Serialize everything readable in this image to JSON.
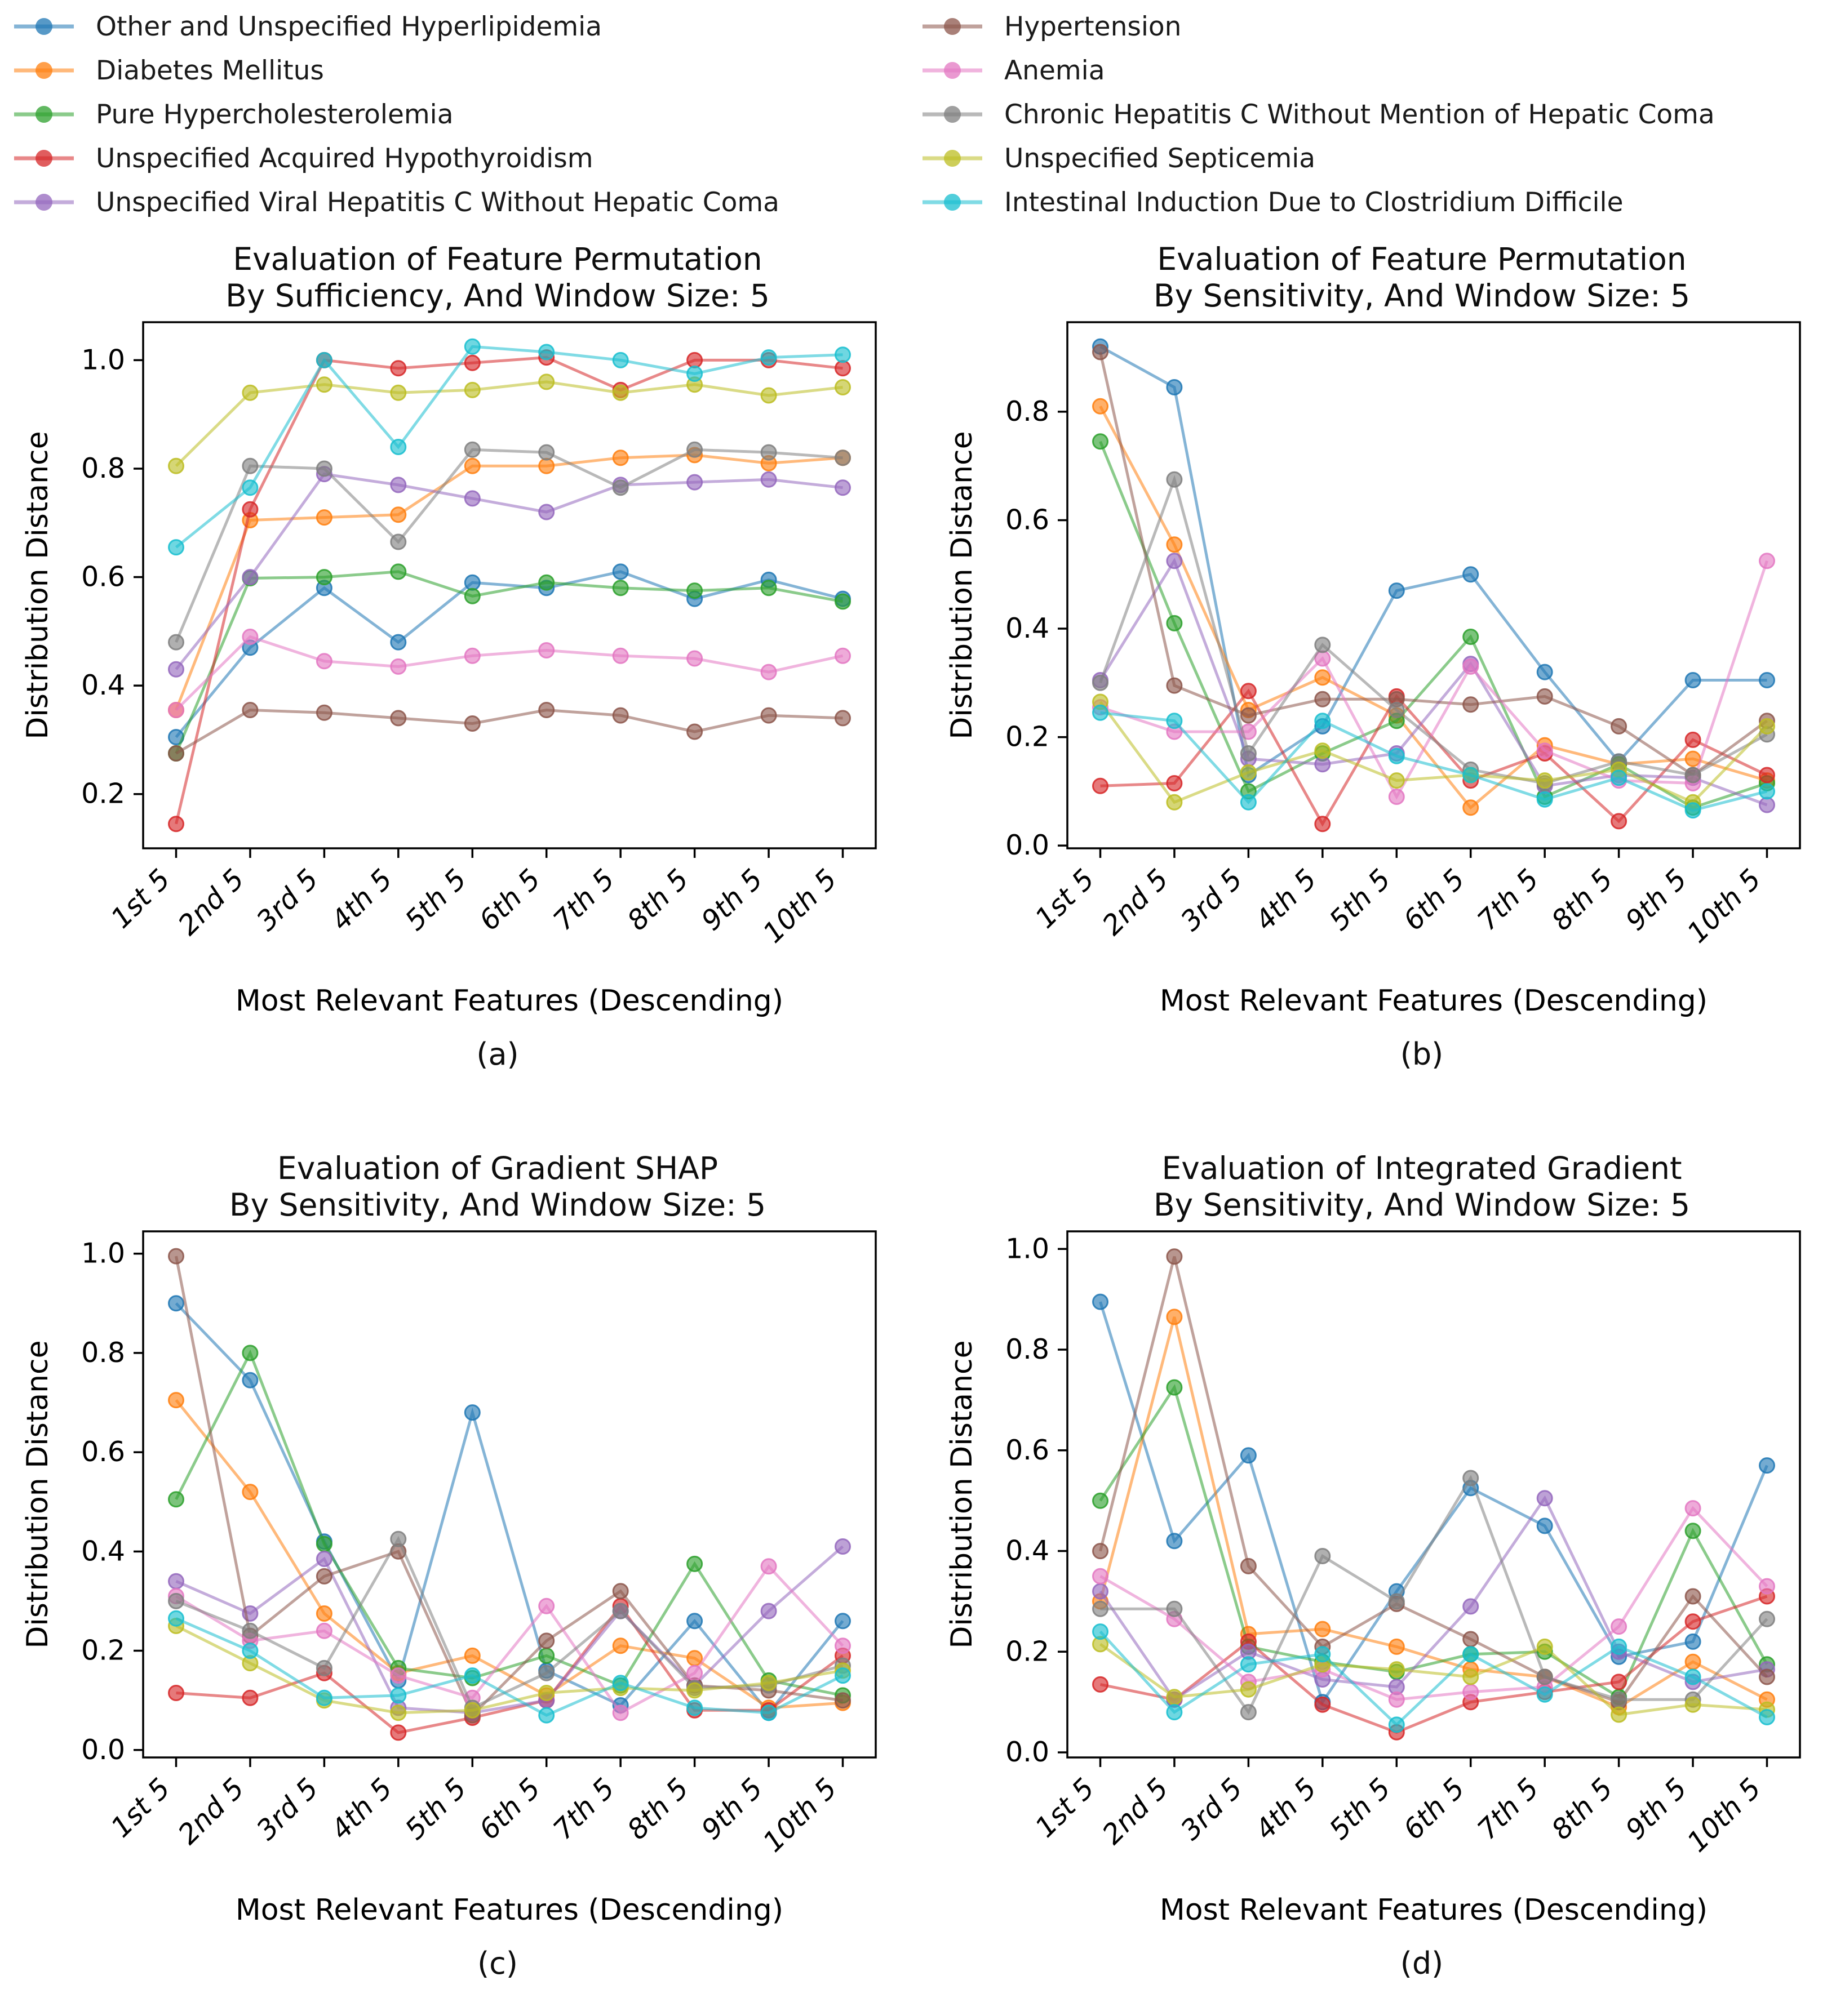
{
  "palette": {
    "blue": "#1f77b4",
    "orange": "#ff7f0e",
    "green": "#2ca02c",
    "red": "#d62728",
    "purple": "#9467bd",
    "brown": "#8c564b",
    "pink": "#e377c2",
    "gray": "#7f7f7f",
    "olive": "#bcbd22",
    "cyan": "#17becf"
  },
  "legend": {
    "columns": [
      {
        "items": [
          {
            "label": "Other and Unspecified Hyperlipidemia",
            "color": "blue"
          },
          {
            "label": "Diabetes Mellitus",
            "color": "orange"
          },
          {
            "label": "Pure Hypercholesterolemia",
            "color": "green"
          },
          {
            "label": "Unspecified Acquired Hypothyroidism",
            "color": "red"
          },
          {
            "label": "Unspecified Viral Hepatitis C Without Hepatic Coma",
            "color": "purple"
          }
        ]
      },
      {
        "items": [
          {
            "label": "Hypertension",
            "color": "brown"
          },
          {
            "label": "Anemia",
            "color": "pink"
          },
          {
            "label": "Chronic Hepatitis C Without Mention of Hepatic Coma",
            "color": "gray"
          },
          {
            "label": "Unspecified Septicemia",
            "color": "olive"
          },
          {
            "label": "Intestinal Induction Due to Clostridium Difficile",
            "color": "cyan"
          }
        ]
      }
    ]
  },
  "chart_data": [
    {
      "id": "a",
      "type": "line",
      "caption": "(a)",
      "title_line1": "Evaluation of Feature Permutation",
      "title_line2": "By Sufficiency, And Window Size: 5",
      "xlabel": "Most Relevant Features (Descending)",
      "ylabel": "Distribution Distance",
      "categories": [
        "1st 5",
        "2nd 5",
        "3rd 5",
        "4th 5",
        "5th 5",
        "6th 5",
        "7th 5",
        "8th 5",
        "9th 5",
        "10th 5"
      ],
      "yticks": [
        0.2,
        0.4,
        0.6,
        0.8,
        1.0
      ],
      "ylim": [
        0.1,
        1.07
      ],
      "grid": false,
      "series": [
        {
          "name": "Other and Unspecified Hyperlipidemia",
          "color": "blue",
          "values": [
            0.305,
            0.47,
            0.58,
            0.48,
            0.59,
            0.58,
            0.61,
            0.56,
            0.595,
            0.56
          ]
        },
        {
          "name": "Diabetes Mellitus",
          "color": "orange",
          "values": [
            0.355,
            0.705,
            0.71,
            0.715,
            0.805,
            0.805,
            0.82,
            0.825,
            0.81,
            0.82
          ]
        },
        {
          "name": "Pure Hypercholesterolemia",
          "color": "green",
          "values": [
            0.275,
            0.598,
            0.6,
            0.61,
            0.565,
            0.59,
            0.58,
            0.575,
            0.58,
            0.555
          ]
        },
        {
          "name": "Unspecified Acquired Hypothyroidism",
          "color": "red",
          "values": [
            0.145,
            0.725,
            1.0,
            0.985,
            0.995,
            1.005,
            0.945,
            1.0,
            1.0,
            0.985
          ]
        },
        {
          "name": "Unspecified Viral Hepatitis C Without Hepatic Coma",
          "color": "purple",
          "values": [
            0.43,
            0.6,
            0.79,
            0.77,
            0.745,
            0.72,
            0.77,
            0.775,
            0.78,
            0.765
          ]
        },
        {
          "name": "Hypertension",
          "color": "brown",
          "values": [
            0.275,
            0.355,
            0.35,
            0.34,
            0.33,
            0.355,
            0.345,
            0.315,
            0.345,
            0.34
          ]
        },
        {
          "name": "Anemia",
          "color": "pink",
          "values": [
            0.355,
            0.49,
            0.445,
            0.435,
            0.455,
            0.465,
            0.455,
            0.45,
            0.425,
            0.455
          ]
        },
        {
          "name": "Chronic Hepatitis C Without Mention of Hepatic Coma",
          "color": "gray",
          "values": [
            0.48,
            0.805,
            0.8,
            0.665,
            0.835,
            0.83,
            0.765,
            0.835,
            0.83,
            0.82
          ]
        },
        {
          "name": "Unspecified Septicemia",
          "color": "olive",
          "values": [
            0.805,
            0.94,
            0.955,
            0.94,
            0.945,
            0.96,
            0.94,
            0.955,
            0.935,
            0.95
          ]
        },
        {
          "name": "Intestinal Induction Due to Clostridium Difficile",
          "color": "cyan",
          "values": [
            0.655,
            0.765,
            1.0,
            0.84,
            1.025,
            1.015,
            1.0,
            0.975,
            1.005,
            1.01
          ]
        }
      ]
    },
    {
      "id": "b",
      "type": "line",
      "caption": "(b)",
      "title_line1": "Evaluation of Feature Permutation",
      "title_line2": "By Sensitivity, And Window Size: 5",
      "xlabel": "Most Relevant Features (Descending)",
      "ylabel": "Distribution Distance",
      "categories": [
        "1st 5",
        "2nd 5",
        "3rd 5",
        "4th 5",
        "5th 5",
        "6th 5",
        "7th 5",
        "8th 5",
        "9th 5",
        "10th 5"
      ],
      "yticks": [
        0.0,
        0.2,
        0.4,
        0.6,
        0.8
      ],
      "ylim": [
        -0.005,
        0.965
      ],
      "grid": false,
      "series": [
        {
          "name": "Other and Unspecified Hyperlipidemia",
          "color": "blue",
          "values": [
            0.92,
            0.845,
            0.13,
            0.22,
            0.47,
            0.5,
            0.32,
            0.155,
            0.305,
            0.305
          ]
        },
        {
          "name": "Diabetes Mellitus",
          "color": "orange",
          "values": [
            0.81,
            0.555,
            0.25,
            0.31,
            0.24,
            0.07,
            0.185,
            0.15,
            0.16,
            0.12
          ]
        },
        {
          "name": "Pure Hypercholesterolemia",
          "color": "green",
          "values": [
            0.745,
            0.41,
            0.1,
            0.17,
            0.23,
            0.385,
            0.09,
            0.15,
            0.07,
            0.115
          ]
        },
        {
          "name": "Unspecified Acquired Hypothyroidism",
          "color": "red",
          "values": [
            0.11,
            0.115,
            0.285,
            0.04,
            0.275,
            0.12,
            0.17,
            0.045,
            0.195,
            0.13
          ]
        },
        {
          "name": "Unspecified Viral Hepatitis C Without Hepatic Coma",
          "color": "purple",
          "values": [
            0.305,
            0.525,
            0.16,
            0.15,
            0.17,
            0.335,
            0.11,
            0.13,
            0.125,
            0.075
          ]
        },
        {
          "name": "Hypertension",
          "color": "brown",
          "values": [
            0.91,
            0.295,
            0.24,
            0.27,
            0.27,
            0.26,
            0.275,
            0.22,
            0.13,
            0.23
          ]
        },
        {
          "name": "Anemia",
          "color": "pink",
          "values": [
            0.255,
            0.21,
            0.21,
            0.345,
            0.09,
            0.33,
            0.175,
            0.12,
            0.115,
            0.525
          ]
        },
        {
          "name": "Chronic Hepatitis C Without Mention of Hepatic Coma",
          "color": "gray",
          "values": [
            0.3,
            0.675,
            0.17,
            0.37,
            0.25,
            0.14,
            0.115,
            0.155,
            0.13,
            0.205
          ]
        },
        {
          "name": "Unspecified Septicemia",
          "color": "olive",
          "values": [
            0.265,
            0.08,
            0.135,
            0.175,
            0.12,
            0.13,
            0.12,
            0.14,
            0.08,
            0.22
          ]
        },
        {
          "name": "Intestinal Induction Due to Clostridium Difficile",
          "color": "cyan",
          "values": [
            0.245,
            0.23,
            0.08,
            0.23,
            0.165,
            0.13,
            0.085,
            0.125,
            0.065,
            0.1
          ]
        }
      ]
    },
    {
      "id": "c",
      "type": "line",
      "caption": "(c)",
      "title_line1": "Evaluation of Gradient SHAP",
      "title_line2": "By Sensitivity, And Window Size: 5",
      "xlabel": "Most Relevant Features (Descending)",
      "ylabel": "Distribution Distance",
      "categories": [
        "1st 5",
        "2nd 5",
        "3rd 5",
        "4th 5",
        "5th 5",
        "6th 5",
        "7th 5",
        "8th 5",
        "9th 5",
        "10th 5"
      ],
      "yticks": [
        0.0,
        0.2,
        0.4,
        0.6,
        0.8,
        1.0
      ],
      "ylim": [
        -0.015,
        1.045
      ],
      "grid": false,
      "series": [
        {
          "name": "Other and Unspecified Hyperlipidemia",
          "color": "blue",
          "values": [
            0.9,
            0.745,
            0.42,
            0.14,
            0.68,
            0.16,
            0.09,
            0.26,
            0.075,
            0.26
          ]
        },
        {
          "name": "Diabetes Mellitus",
          "color": "orange",
          "values": [
            0.705,
            0.52,
            0.275,
            0.155,
            0.19,
            0.11,
            0.21,
            0.185,
            0.085,
            0.095
          ]
        },
        {
          "name": "Pure Hypercholesterolemia",
          "color": "green",
          "values": [
            0.505,
            0.8,
            0.415,
            0.165,
            0.145,
            0.19,
            0.13,
            0.375,
            0.14,
            0.11
          ]
        },
        {
          "name": "Unspecified Acquired Hypothyroidism",
          "color": "red",
          "values": [
            0.115,
            0.105,
            0.155,
            0.035,
            0.065,
            0.1,
            0.29,
            0.08,
            0.08,
            0.19
          ]
        },
        {
          "name": "Unspecified Viral Hepatitis C Without Hepatic Coma",
          "color": "purple",
          "values": [
            0.34,
            0.275,
            0.385,
            0.085,
            0.075,
            0.1,
            0.28,
            0.13,
            0.28,
            0.41
          ]
        },
        {
          "name": "Hypertension",
          "color": "brown",
          "values": [
            0.995,
            0.23,
            0.35,
            0.4,
            0.07,
            0.22,
            0.32,
            0.13,
            0.12,
            0.1
          ]
        },
        {
          "name": "Anemia",
          "color": "pink",
          "values": [
            0.31,
            0.22,
            0.24,
            0.15,
            0.105,
            0.29,
            0.075,
            0.155,
            0.37,
            0.21
          ]
        },
        {
          "name": "Chronic Hepatitis C Without Mention of Hepatic Coma",
          "color": "gray",
          "values": [
            0.3,
            0.24,
            0.165,
            0.425,
            0.085,
            0.155,
            0.28,
            0.125,
            0.13,
            0.17
          ]
        },
        {
          "name": "Unspecified Septicemia",
          "color": "olive",
          "values": [
            0.25,
            0.175,
            0.1,
            0.075,
            0.08,
            0.115,
            0.125,
            0.12,
            0.135,
            0.16
          ]
        },
        {
          "name": "Intestinal Induction Due to Clostridium Difficile",
          "color": "cyan",
          "values": [
            0.265,
            0.2,
            0.105,
            0.11,
            0.15,
            0.07,
            0.135,
            0.085,
            0.075,
            0.15
          ]
        }
      ]
    },
    {
      "id": "d",
      "type": "line",
      "caption": "(d)",
      "title_line1": "Evaluation of Integrated Gradient",
      "title_line2": "By Sensitivity, And Window Size: 5",
      "xlabel": "Most Relevant Features (Descending)",
      "ylabel": "Distribution Distance",
      "categories": [
        "1st 5",
        "2nd 5",
        "3rd 5",
        "4th 5",
        "5th 5",
        "6th 5",
        "7th 5",
        "8th 5",
        "9th 5",
        "10th 5"
      ],
      "yticks": [
        0.0,
        0.2,
        0.4,
        0.6,
        0.8,
        1.0
      ],
      "ylim": [
        -0.01,
        1.035
      ],
      "grid": false,
      "series": [
        {
          "name": "Other and Unspecified Hyperlipidemia",
          "color": "blue",
          "values": [
            0.895,
            0.42,
            0.59,
            0.1,
            0.32,
            0.525,
            0.45,
            0.19,
            0.22,
            0.57
          ]
        },
        {
          "name": "Diabetes Mellitus",
          "color": "orange",
          "values": [
            0.3,
            0.865,
            0.235,
            0.245,
            0.21,
            0.165,
            0.15,
            0.09,
            0.18,
            0.105
          ]
        },
        {
          "name": "Pure Hypercholesterolemia",
          "color": "green",
          "values": [
            0.5,
            0.725,
            0.21,
            0.18,
            0.16,
            0.195,
            0.2,
            0.11,
            0.44,
            0.175
          ]
        },
        {
          "name": "Unspecified Acquired Hypothyroidism",
          "color": "red",
          "values": [
            0.135,
            0.105,
            0.22,
            0.095,
            0.04,
            0.1,
            0.12,
            0.14,
            0.26,
            0.31
          ]
        },
        {
          "name": "Unspecified Viral Hepatitis C Without Hepatic Coma",
          "color": "purple",
          "values": [
            0.32,
            0.105,
            0.2,
            0.145,
            0.13,
            0.29,
            0.505,
            0.2,
            0.14,
            0.165
          ]
        },
        {
          "name": "Hypertension",
          "color": "brown",
          "values": [
            0.4,
            0.985,
            0.37,
            0.21,
            0.295,
            0.225,
            0.15,
            0.1,
            0.31,
            0.15
          ]
        },
        {
          "name": "Anemia",
          "color": "pink",
          "values": [
            0.35,
            0.265,
            0.14,
            0.165,
            0.105,
            0.12,
            0.13,
            0.25,
            0.485,
            0.33
          ]
        },
        {
          "name": "Chronic Hepatitis C Without Mention of Hepatic Coma",
          "color": "gray",
          "values": [
            0.285,
            0.285,
            0.08,
            0.39,
            0.3,
            0.545,
            0.15,
            0.105,
            0.105,
            0.265
          ]
        },
        {
          "name": "Unspecified Septicemia",
          "color": "olive",
          "values": [
            0.215,
            0.11,
            0.125,
            0.175,
            0.165,
            0.15,
            0.21,
            0.075,
            0.095,
            0.085
          ]
        },
        {
          "name": "Intestinal Induction Due to Clostridium Difficile",
          "color": "cyan",
          "values": [
            0.24,
            0.08,
            0.175,
            0.195,
            0.055,
            0.195,
            0.115,
            0.21,
            0.15,
            0.07
          ]
        }
      ]
    }
  ]
}
